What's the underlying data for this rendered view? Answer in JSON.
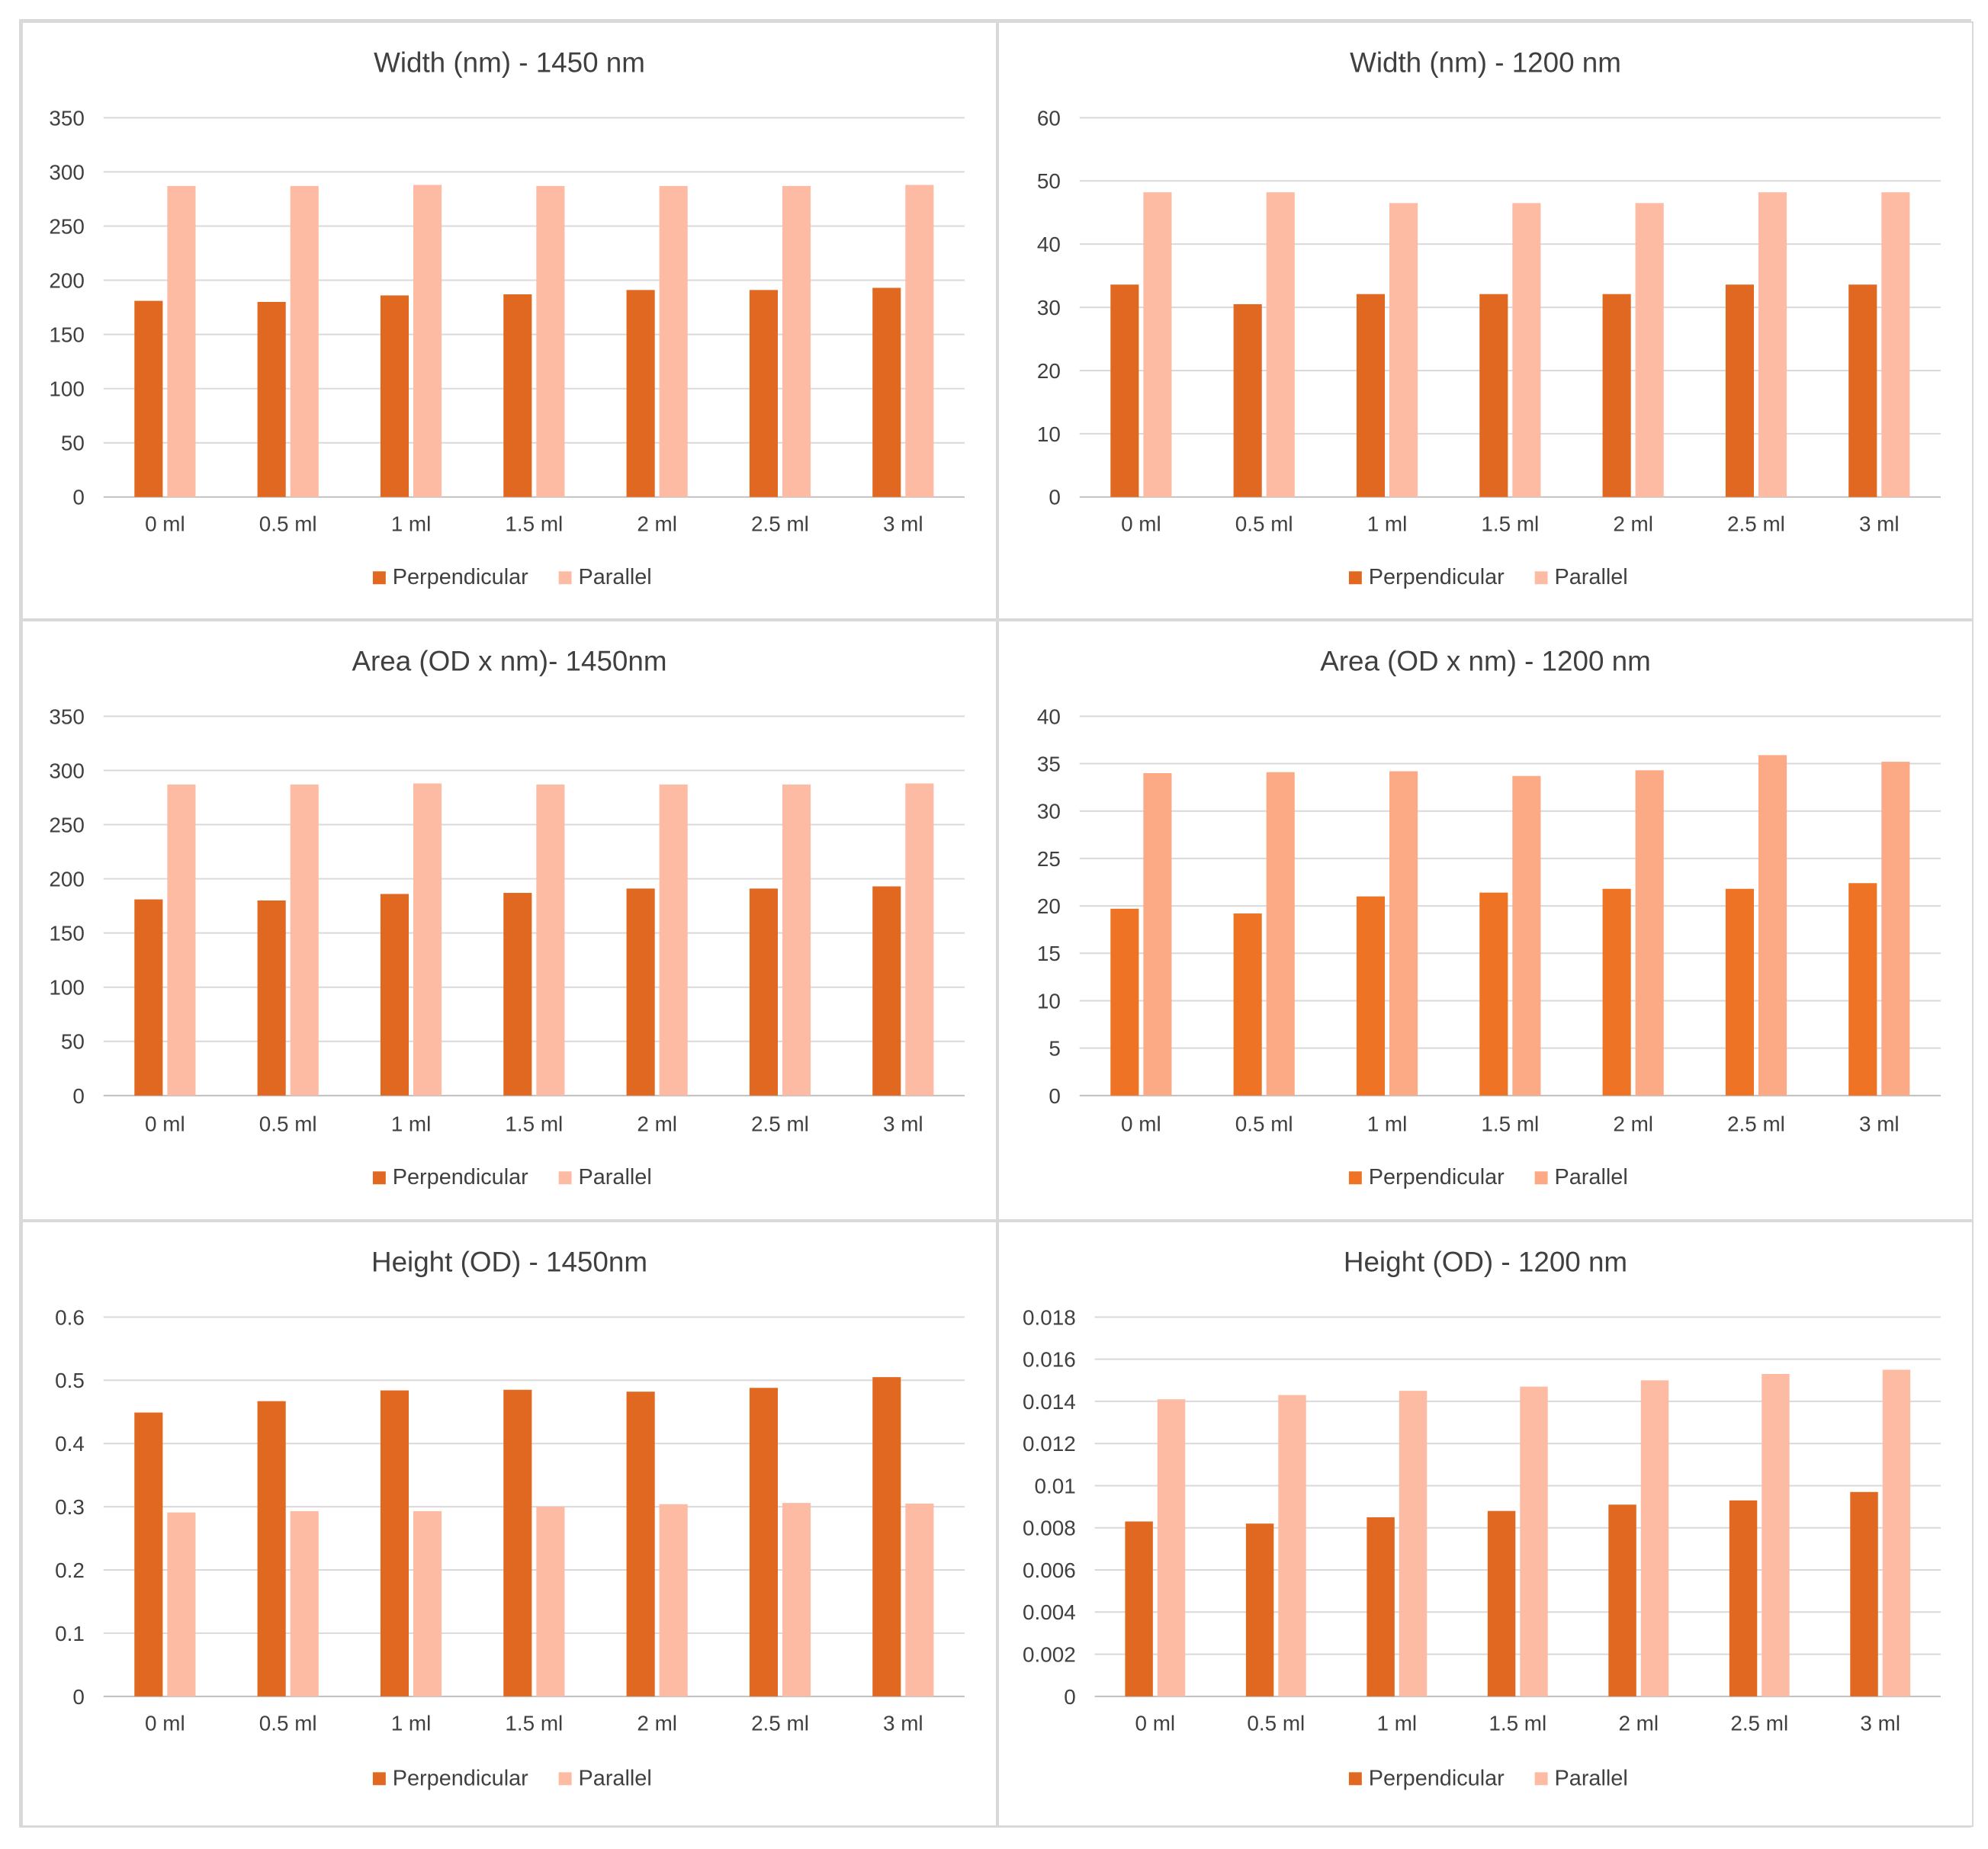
{
  "chart_data": [
    {
      "type": "bar",
      "title": "Width (nm) - 1450 nm",
      "categories": [
        "0 ml",
        "0.5 ml",
        "1 ml",
        "1.5 ml",
        "2 ml",
        "2.5 ml",
        "3 ml"
      ],
      "ylim": [
        0,
        350
      ],
      "yticks": [
        "0",
        "50",
        "100",
        "150",
        "200",
        "250",
        "300",
        "350"
      ],
      "ytick_values": [
        0,
        50,
        100,
        150,
        200,
        250,
        300,
        350
      ],
      "grid": true,
      "legend": "bottom",
      "series": [
        {
          "name": "Perpendicular",
          "color": "#e06820",
          "values": [
            181,
            180,
            186,
            187,
            191,
            191,
            193
          ]
        },
        {
          "name": "Parallel",
          "color": "#fdbba3",
          "values": [
            287,
            287,
            288,
            287,
            287,
            287,
            288
          ]
        }
      ]
    },
    {
      "type": "bar",
      "title": "Width (nm) - 1200 nm",
      "categories": [
        "0 ml",
        "0.5 ml",
        "1 ml",
        "1.5 ml",
        "2 ml",
        "2.5 ml",
        "3 ml"
      ],
      "ylim": [
        0,
        60
      ],
      "yticks": [
        "0",
        "10",
        "20",
        "30",
        "40",
        "50",
        "60"
      ],
      "ytick_values": [
        0,
        10,
        20,
        30,
        40,
        50,
        60
      ],
      "grid": true,
      "legend": "bottom",
      "series": [
        {
          "name": "Perpendicular",
          "color": "#e06820",
          "values": [
            33.6,
            30.5,
            32.1,
            32.1,
            32.1,
            33.6,
            33.6
          ]
        },
        {
          "name": "Parallel",
          "color": "#fdbba3",
          "values": [
            48.2,
            48.2,
            46.5,
            46.5,
            46.5,
            48.2,
            48.2
          ]
        }
      ]
    },
    {
      "type": "bar",
      "title": "Area (OD x nm)- 1450nm",
      "categories": [
        "0 ml",
        "0.5 ml",
        "1 ml",
        "1.5 ml",
        "2 ml",
        "2.5 ml",
        "3 ml"
      ],
      "ylim": [
        0,
        350
      ],
      "yticks": [
        "0",
        "50",
        "100",
        "150",
        "200",
        "250",
        "300",
        "350"
      ],
      "ytick_values": [
        0,
        50,
        100,
        150,
        200,
        250,
        300,
        350
      ],
      "grid": true,
      "legend": "bottom",
      "series": [
        {
          "name": "Perpendicular",
          "color": "#e06820",
          "values": [
            181,
            180,
            186,
            187,
            191,
            191,
            193
          ]
        },
        {
          "name": "Parallel",
          "color": "#fdbba3",
          "values": [
            287,
            287,
            288,
            287,
            287,
            287,
            288
          ]
        }
      ]
    },
    {
      "type": "bar",
      "title": "Area (OD x nm)  - 1200 nm",
      "categories": [
        "0 ml",
        "0.5 ml",
        "1 ml",
        "1.5 ml",
        "2 ml",
        "2.5 ml",
        "3 ml"
      ],
      "ylim": [
        0,
        40
      ],
      "yticks": [
        "0",
        "5",
        "10",
        "15",
        "20",
        "25",
        "30",
        "35",
        "40"
      ],
      "ytick_values": [
        0,
        5,
        10,
        15,
        20,
        25,
        30,
        35,
        40
      ],
      "grid": true,
      "legend": "bottom",
      "series": [
        {
          "name": "Perpendicular",
          "color": "#ee7325",
          "values": [
            19.7,
            19.2,
            21.0,
            21.4,
            21.8,
            21.8,
            22.4
          ]
        },
        {
          "name": "Parallel",
          "color": "#fca986",
          "values": [
            34.0,
            34.1,
            34.2,
            33.7,
            34.3,
            35.9,
            35.2
          ]
        }
      ]
    },
    {
      "type": "bar",
      "title": "Height (OD) - 1450nm",
      "categories": [
        "0 ml",
        "0.5 ml",
        "1 ml",
        "1.5 ml",
        "2 ml",
        "2.5 ml",
        "3 ml"
      ],
      "ylim": [
        0,
        0.6
      ],
      "yticks": [
        "0",
        "0.1",
        "0.2",
        "0.3",
        "0.4",
        "0.5",
        "0.6"
      ],
      "ytick_values": [
        0,
        0.1,
        0.2,
        0.3,
        0.4,
        0.5,
        0.6
      ],
      "grid": true,
      "legend": "bottom",
      "series": [
        {
          "name": "Perpendicular",
          "color": "#e06820",
          "values": [
            0.449,
            0.467,
            0.484,
            0.485,
            0.482,
            0.488,
            0.505
          ]
        },
        {
          "name": "Parallel",
          "color": "#fdbba3",
          "values": [
            0.291,
            0.293,
            0.293,
            0.3,
            0.304,
            0.306,
            0.305
          ]
        }
      ]
    },
    {
      "type": "bar",
      "title": "Height (OD)  - 1200 nm",
      "categories": [
        "0 ml",
        "0.5 ml",
        "1 ml",
        "1.5 ml",
        "2 ml",
        "2.5 ml",
        "3 ml"
      ],
      "ylim": [
        0,
        0.018
      ],
      "yticks": [
        "0",
        "0.002",
        "0.004",
        "0.006",
        "0.008",
        "0.01",
        "0.012",
        "0.014",
        "0.016",
        "0.018"
      ],
      "ytick_values": [
        0,
        0.002,
        0.004,
        0.006,
        0.008,
        0.01,
        0.012,
        0.014,
        0.016,
        0.018
      ],
      "grid": true,
      "legend": "bottom",
      "series": [
        {
          "name": "Perpendicular",
          "color": "#e06820",
          "values": [
            0.0083,
            0.0082,
            0.0085,
            0.0088,
            0.0091,
            0.0093,
            0.0097
          ]
        },
        {
          "name": "Parallel",
          "color": "#fdbba3",
          "values": [
            0.0141,
            0.0143,
            0.0145,
            0.0147,
            0.015,
            0.0153,
            0.0155
          ]
        }
      ]
    }
  ]
}
